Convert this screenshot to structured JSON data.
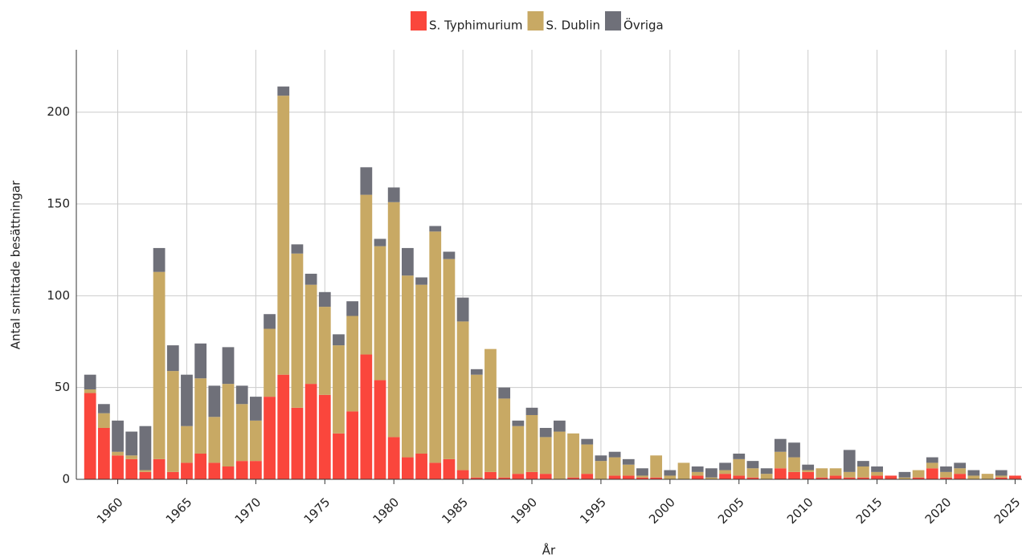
{
  "chart_data": {
    "type": "stacked_bar",
    "x": [
      1958,
      1959,
      1960,
      1961,
      1962,
      1963,
      1964,
      1965,
      1966,
      1967,
      1968,
      1969,
      1970,
      1971,
      1972,
      1973,
      1974,
      1975,
      1976,
      1977,
      1978,
      1979,
      1980,
      1981,
      1982,
      1983,
      1984,
      1985,
      1986,
      1987,
      1988,
      1989,
      1990,
      1991,
      1992,
      1993,
      1994,
      1995,
      1996,
      1997,
      1998,
      1999,
      2000,
      2001,
      2002,
      2003,
      2004,
      2005,
      2006,
      2007,
      2008,
      2009,
      2010,
      2011,
      2012,
      2013,
      2014,
      2015,
      2016,
      2017,
      2018,
      2019,
      2020,
      2021,
      2022,
      2023,
      2024,
      2025
    ],
    "series": [
      {
        "name": "S. Typhimurium",
        "color": "#fa463c",
        "values": [
          47,
          28,
          13,
          11,
          4,
          11,
          4,
          9,
          14,
          9,
          7,
          10,
          10,
          45,
          57,
          39,
          52,
          46,
          25,
          37,
          68,
          54,
          23,
          12,
          14,
          9,
          11,
          5,
          1,
          4,
          1,
          3,
          4,
          3,
          0,
          1,
          3,
          0,
          2,
          2,
          1,
          1,
          0,
          0,
          2,
          0,
          3,
          2,
          1,
          0,
          6,
          4,
          4,
          1,
          2,
          1,
          1,
          2,
          2,
          0,
          1,
          6,
          1,
          3,
          0,
          0,
          1,
          2
        ]
      },
      {
        "name": "S. Dublin",
        "color": "#c8a964",
        "values": [
          2,
          8,
          2,
          2,
          1,
          102,
          55,
          20,
          41,
          25,
          45,
          31,
          22,
          37,
          152,
          84,
          54,
          48,
          48,
          52,
          87,
          73,
          128,
          99,
          92,
          126,
          109,
          81,
          56,
          67,
          43,
          26,
          31,
          20,
          26,
          24,
          16,
          10,
          10,
          6,
          1,
          12,
          2,
          9,
          2,
          1,
          2,
          9,
          5,
          3,
          9,
          8,
          1,
          5,
          4,
          3,
          6,
          2,
          0,
          1,
          4,
          3,
          3,
          3,
          2,
          3,
          1,
          0
        ]
      },
      {
        "name": "Övriga",
        "color": "#6f7079",
        "values": [
          8,
          5,
          17,
          13,
          24,
          13,
          14,
          28,
          19,
          17,
          20,
          10,
          13,
          8,
          5,
          5,
          6,
          8,
          6,
          8,
          15,
          4,
          8,
          15,
          4,
          3,
          4,
          13,
          3,
          0,
          6,
          3,
          4,
          5,
          6,
          0,
          3,
          3,
          3,
          3,
          4,
          0,
          3,
          0,
          3,
          5,
          4,
          3,
          4,
          3,
          7,
          8,
          3,
          0,
          0,
          12,
          3,
          3,
          0,
          3,
          0,
          3,
          3,
          3,
          3,
          0,
          3,
          0
        ]
      }
    ],
    "xlabel": "År",
    "ylabel": "Antal smittade besättningar",
    "xlim": [
      1957,
      2025.5
    ],
    "ylim": [
      0,
      234
    ],
    "xticks": [
      1960,
      1965,
      1970,
      1975,
      1980,
      1985,
      1990,
      1995,
      2000,
      2005,
      2010,
      2015,
      2020,
      2025
    ],
    "yticks": [
      0,
      50,
      100,
      150,
      200
    ],
    "grid": true,
    "legend": "top"
  }
}
